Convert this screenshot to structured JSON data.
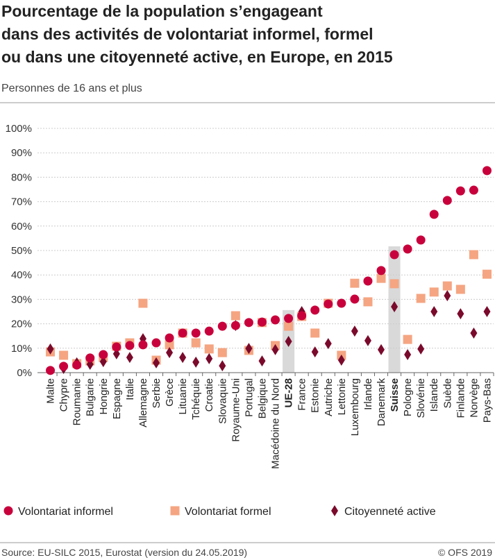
{
  "chart_data": {
    "type": "dot",
    "title": [
      "Pourcentage de la population s’engageant",
      "dans des activités de volontariat informel, formel",
      "ou dans une citoyenneté active, en Europe, en 2015"
    ],
    "subtitle": "Personnes de 16 ans et plus",
    "source": "Source: EU-SILC 2015, Eurostat (version du 24.05.2019)",
    "credit": "© OFS 2019",
    "categories": [
      "Malte",
      "Chypre",
      "Roumanie",
      "Bulgarie",
      "Hongrie",
      "Espagne",
      "Italie",
      "Allemagne",
      "Serbie",
      "Grèce",
      "Lituanie",
      "Tchéquie",
      "Croatie",
      "Slovaquie",
      "Royaume-Uni",
      "Portugal",
      "Belgique",
      "Macédoine du Nord",
      "UE-28",
      "France",
      "Estonie",
      "Autriche",
      "Lettonie",
      "Luxembourg",
      "Irlande",
      "Danemark",
      "Suisse",
      "Pologne",
      "Slovénie",
      "Islande",
      "Suède",
      "Finlande",
      "Norvège",
      "Pays-Bas"
    ],
    "highlight": [
      18,
      26
    ],
    "series": [
      {
        "name": "Volontariat informel",
        "color": "#c8003c",
        "marker": "circle",
        "values": [
          0.9,
          2.6,
          3.1,
          6,
          7.4,
          10.5,
          11.1,
          11.4,
          12.2,
          14.2,
          16.2,
          16.2,
          17,
          19,
          19.3,
          20.5,
          20.7,
          21.6,
          22.2,
          23.3,
          25.6,
          28.1,
          28.4,
          30.1,
          37.5,
          41.8,
          48.3,
          50.6,
          54.3,
          64.8,
          70.5,
          74.4,
          74.7,
          82.7
        ]
      },
      {
        "name": "Volontariat formel",
        "color": "#f5a582",
        "marker": "square",
        "values": [
          8.5,
          7.1,
          3.7,
          4.8,
          6.2,
          10.8,
          12.2,
          28.4,
          5.1,
          11.4,
          16.2,
          12.2,
          9.7,
          8.2,
          23.3,
          9.1,
          20.5,
          11.1,
          19,
          23,
          16.2,
          28.4,
          7.1,
          36.6,
          29,
          38.6,
          36.4,
          13.6,
          30.4,
          33,
          35.5,
          34.1,
          48.3,
          40.3
        ]
      },
      {
        "name": "Citoyenneté active",
        "color": "#7a0a2c",
        "marker": "diamond",
        "values": [
          9.7,
          1.7,
          4,
          3.4,
          4.5,
          7.7,
          6.2,
          13.9,
          4,
          8.2,
          6.2,
          4.3,
          5.7,
          2.8,
          19.3,
          9.9,
          4.8,
          9.4,
          12.8,
          25,
          8.5,
          11.9,
          5.1,
          17,
          13.1,
          9.4,
          27,
          7.4,
          9.7,
          25,
          31.5,
          24.1,
          16.2,
          25
        ]
      }
    ],
    "ylim": [
      0,
      100
    ],
    "yticks": [
      {
        "value": 0,
        "label": "0%"
      },
      {
        "value": 10,
        "label": "10%"
      },
      {
        "value": 20,
        "label": "20%"
      },
      {
        "value": 30,
        "label": "30%"
      },
      {
        "value": 40,
        "label": "40%"
      },
      {
        "value": 50,
        "label": "50%"
      },
      {
        "value": 60,
        "label": "60%"
      },
      {
        "value": 70,
        "label": "70%"
      },
      {
        "value": 80,
        "label": "80%"
      },
      {
        "value": 90,
        "label": "90%"
      },
      {
        "value": 100,
        "label": "100%"
      }
    ],
    "grid": true
  }
}
